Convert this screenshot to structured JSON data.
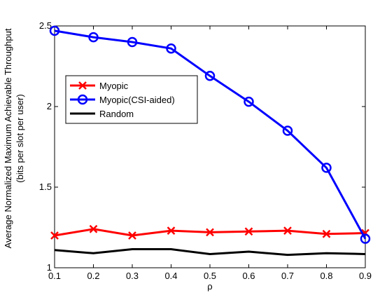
{
  "chart_data": {
    "type": "line",
    "title": "",
    "xlabel": "ρ",
    "ylabel": "Average Normalized Maximum Achievable Throughput",
    "ylabel2": "(bits per slot per user)",
    "x": [
      0.1,
      0.2,
      0.3,
      0.4,
      0.5,
      0.6,
      0.7,
      0.8,
      0.9
    ],
    "xlim": [
      0.1,
      0.9
    ],
    "ylim": [
      1,
      2.5
    ],
    "xticks": [
      "0.1",
      "0.2",
      "0.3",
      "0.4",
      "0.5",
      "0.6",
      "0.7",
      "0.8",
      "0.9"
    ],
    "yticks": [
      "1",
      "1.5",
      "2",
      "2.5"
    ],
    "grid": false,
    "legend_position": "upper-left",
    "series": [
      {
        "name": "Myopic",
        "color": "#ff0000",
        "marker": "x",
        "values": [
          1.2,
          1.24,
          1.2,
          1.23,
          1.22,
          1.225,
          1.23,
          1.21,
          1.215
        ]
      },
      {
        "name": "Myopic(CSI-aided)",
        "color": "#0000ff",
        "marker": "circle",
        "values": [
          2.47,
          2.43,
          2.4,
          2.36,
          2.19,
          2.03,
          1.85,
          1.62,
          1.18
        ]
      },
      {
        "name": "Random",
        "color": "#000000",
        "marker": "none",
        "values": [
          1.11,
          1.09,
          1.115,
          1.115,
          1.085,
          1.1,
          1.08,
          1.09,
          1.085
        ]
      }
    ]
  }
}
